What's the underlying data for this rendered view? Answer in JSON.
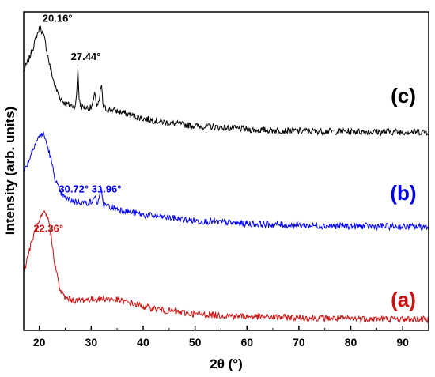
{
  "chart_data": {
    "type": "line",
    "xlabel": "2θ (°)",
    "ylabel": "Intensity (arb. units)",
    "xlim": [
      17,
      95
    ],
    "x_ticks": [
      20,
      30,
      40,
      50,
      60,
      70,
      80,
      90
    ],
    "y_tick_labels": "none",
    "grid": false,
    "series": [
      {
        "name": "(c)",
        "color": "#000000",
        "offset": 0.62,
        "x": [
          17,
          18,
          19,
          19.5,
          20.16,
          21,
          22,
          23,
          24,
          25,
          26,
          27,
          27.2,
          27.44,
          27.7,
          28,
          30,
          30.5,
          30.72,
          31,
          31.5,
          31.96,
          32.3,
          33,
          35,
          37,
          40,
          45,
          50,
          55,
          60,
          65,
          70,
          75,
          80,
          85,
          90,
          95
        ],
        "y": [
          0.23,
          0.27,
          0.32,
          0.35,
          0.38,
          0.34,
          0.25,
          0.18,
          0.14,
          0.12,
          0.115,
          0.11,
          0.16,
          0.24,
          0.13,
          0.11,
          0.105,
          0.13,
          0.17,
          0.11,
          0.12,
          0.19,
          0.11,
          0.1,
          0.095,
          0.085,
          0.07,
          0.055,
          0.045,
          0.04,
          0.033,
          0.03,
          0.028,
          0.027,
          0.026,
          0.025,
          0.025,
          0.025
        ]
      },
      {
        "name": "(b)",
        "color": "#0000ee",
        "offset": 0.31,
        "x": [
          17,
          18,
          19,
          20,
          20.5,
          21,
          22,
          23,
          24,
          25,
          27,
          29,
          30.5,
          30.72,
          31,
          31.5,
          31.96,
          32.3,
          33,
          35,
          40,
          45,
          50,
          55,
          60,
          65,
          70,
          75,
          80,
          85,
          90,
          95
        ],
        "y": [
          0.2,
          0.24,
          0.29,
          0.32,
          0.33,
          0.32,
          0.26,
          0.18,
          0.13,
          0.11,
          0.1,
          0.095,
          0.1,
          0.13,
          0.095,
          0.1,
          0.15,
          0.09,
          0.085,
          0.075,
          0.055,
          0.045,
          0.035,
          0.03,
          0.025,
          0.022,
          0.02,
          0.018,
          0.017,
          0.016,
          0.015,
          0.015
        ]
      },
      {
        "name": "(a)",
        "color": "#cc1111",
        "offset": 0.0,
        "x": [
          17,
          18,
          19,
          20,
          20.5,
          21,
          21.5,
          22,
          22.36,
          23,
          24,
          25,
          27,
          30,
          33,
          35,
          38,
          40,
          45,
          50,
          55,
          60,
          65,
          70,
          75,
          80,
          85,
          90,
          95
        ],
        "y": [
          0.17,
          0.24,
          0.3,
          0.34,
          0.36,
          0.37,
          0.36,
          0.33,
          0.28,
          0.2,
          0.11,
          0.085,
          0.075,
          0.08,
          0.082,
          0.078,
          0.065,
          0.055,
          0.04,
          0.03,
          0.026,
          0.022,
          0.02,
          0.018,
          0.016,
          0.015,
          0.014,
          0.013,
          0.012
        ]
      }
    ],
    "annotations": [
      {
        "text": "20.16°",
        "series": "(c)",
        "x": 20.16,
        "color": "#000000"
      },
      {
        "text": "27.44°",
        "series": "(c)",
        "x": 27.44,
        "color": "#000000"
      },
      {
        "text": "30.72° 31.96°",
        "series": "(b)",
        "x": 31.3,
        "color": "#0000ee"
      },
      {
        "text": "22.36°",
        "series": "(a)",
        "x": 22.36,
        "color": "#cc1111"
      }
    ]
  }
}
